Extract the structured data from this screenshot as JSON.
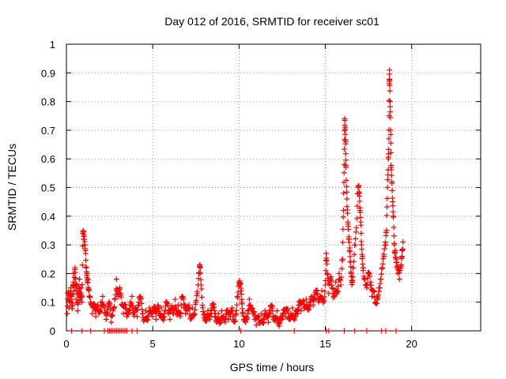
{
  "chart_data": {
    "type": "scatter",
    "title": "Day 012 of 2016, SRMTID for receiver sc01",
    "xlabel": "GPS time / hours",
    "ylabel": "SRMTID / TECUs",
    "xlim": [
      0,
      24
    ],
    "ylim": [
      0,
      1
    ],
    "xticks": [
      0,
      5,
      10,
      15,
      20
    ],
    "yticks": [
      0,
      0.1,
      0.2,
      0.3,
      0.4,
      0.5,
      0.6,
      0.7,
      0.8,
      0.9,
      1
    ],
    "ytick_labels": [
      "0",
      "0.1",
      "0.2",
      "0.3",
      "0.4",
      "0.5",
      "0.6",
      "0.7",
      "0.8",
      "0.9",
      "1"
    ],
    "xtick_labels": [
      "0",
      "5",
      "10",
      "15",
      "20"
    ],
    "grid": true,
    "marker": "+",
    "series": [
      {
        "name": "SRMTID",
        "color": "#ff0000",
        "points": [
          [
            0.05,
            0.06
          ],
          [
            0.1,
            0.13
          ],
          [
            0.15,
            0.08
          ],
          [
            0.2,
            0.1
          ],
          [
            0.25,
            0.15
          ],
          [
            0.3,
            0.12
          ],
          [
            0.35,
            0.09
          ],
          [
            0.4,
            0.2
          ],
          [
            0.45,
            0.14
          ],
          [
            0.5,
            0.22
          ],
          [
            0.55,
            0.11
          ],
          [
            0.6,
            0.16
          ],
          [
            0.65,
            0.07
          ],
          [
            0.7,
            0.13
          ],
          [
            0.75,
            0.18
          ],
          [
            0.8,
            0.12
          ],
          [
            0.85,
            0.15
          ],
          [
            0.9,
            0.1
          ],
          [
            0.95,
            0.34
          ],
          [
            1.0,
            0.32
          ],
          [
            1.05,
            0.3
          ],
          [
            1.1,
            0.28
          ],
          [
            1.15,
            0.22
          ],
          [
            1.2,
            0.2
          ],
          [
            1.25,
            0.18
          ],
          [
            1.3,
            0.14
          ],
          [
            1.4,
            0.1
          ],
          [
            1.5,
            0.06
          ],
          [
            1.6,
            0.08
          ],
          [
            1.7,
            0.05
          ],
          [
            1.8,
            0.09
          ],
          [
            1.9,
            0.07
          ],
          [
            2.0,
            0.1
          ],
          [
            2.1,
            0.12
          ],
          [
            2.2,
            0.08
          ],
          [
            2.3,
            0.04
          ],
          [
            2.4,
            0.06
          ],
          [
            2.5,
            0.09
          ],
          [
            2.6,
            0.03
          ],
          [
            2.7,
            0.07
          ],
          [
            2.8,
            0.11
          ],
          [
            2.9,
            0.18
          ],
          [
            3.0,
            0.13
          ],
          [
            3.1,
            0.15
          ],
          [
            3.2,
            0.09
          ],
          [
            3.3,
            0.06
          ],
          [
            3.4,
            0.08
          ],
          [
            3.5,
            0.05
          ],
          [
            3.6,
            0.07
          ],
          [
            3.7,
            0.1
          ],
          [
            3.8,
            0.12
          ],
          [
            3.9,
            0.06
          ],
          [
            4.0,
            0.08
          ],
          [
            4.1,
            0.05
          ],
          [
            4.2,
            0.09
          ],
          [
            4.3,
            0.11
          ],
          [
            4.4,
            0.06
          ],
          [
            4.5,
            0.04
          ],
          [
            4.6,
            0.07
          ],
          [
            4.7,
            0.05
          ],
          [
            4.8,
            0.08
          ],
          [
            4.9,
            0.06
          ],
          [
            5.0,
            0.05
          ],
          [
            5.1,
            0.07
          ],
          [
            5.2,
            0.04
          ],
          [
            5.3,
            0.09
          ],
          [
            5.4,
            0.06
          ],
          [
            5.5,
            0.08
          ],
          [
            5.6,
            0.05
          ],
          [
            5.7,
            0.07
          ],
          [
            5.8,
            0.1
          ],
          [
            5.9,
            0.06
          ],
          [
            6.0,
            0.04
          ],
          [
            6.1,
            0.08
          ],
          [
            6.2,
            0.06
          ],
          [
            6.3,
            0.11
          ],
          [
            6.4,
            0.07
          ],
          [
            6.5,
            0.09
          ],
          [
            6.6,
            0.05
          ],
          [
            6.7,
            0.12
          ],
          [
            6.8,
            0.08
          ],
          [
            6.9,
            0.06
          ],
          [
            7.0,
            0.07
          ],
          [
            7.1,
            0.09
          ],
          [
            7.2,
            0.05
          ],
          [
            7.3,
            0.08
          ],
          [
            7.4,
            0.06
          ],
          [
            7.5,
            0.1
          ],
          [
            7.6,
            0.13
          ],
          [
            7.7,
            0.2
          ],
          [
            7.75,
            0.22
          ],
          [
            7.8,
            0.16
          ],
          [
            7.9,
            0.08
          ],
          [
            8.0,
            0.06
          ],
          [
            8.1,
            0.05
          ],
          [
            8.2,
            0.07
          ],
          [
            8.3,
            0.04
          ],
          [
            8.4,
            0.06
          ],
          [
            8.5,
            0.08
          ],
          [
            8.6,
            0.05
          ],
          [
            8.7,
            0.03
          ],
          [
            8.8,
            0.06
          ],
          [
            8.9,
            0.04
          ],
          [
            9.0,
            0.07
          ],
          [
            9.1,
            0.05
          ],
          [
            9.2,
            0.03
          ],
          [
            9.3,
            0.06
          ],
          [
            9.4,
            0.04
          ],
          [
            9.5,
            0.05
          ],
          [
            9.6,
            0.08
          ],
          [
            9.7,
            0.04
          ],
          [
            9.8,
            0.06
          ],
          [
            9.9,
            0.12
          ],
          [
            10.0,
            0.17
          ],
          [
            10.05,
            0.16
          ],
          [
            10.1,
            0.14
          ],
          [
            10.15,
            0.1
          ],
          [
            10.2,
            0.06
          ],
          [
            10.3,
            0.04
          ],
          [
            10.4,
            0.05
          ],
          [
            10.5,
            0.07
          ],
          [
            10.6,
            0.11
          ],
          [
            10.7,
            0.08
          ],
          [
            10.8,
            0.06
          ],
          [
            10.9,
            0.04
          ],
          [
            11.0,
            0.02
          ],
          [
            11.1,
            0.05
          ],
          [
            11.2,
            0.03
          ],
          [
            11.3,
            0.06
          ],
          [
            11.4,
            0.04
          ],
          [
            11.5,
            0.07
          ],
          [
            11.6,
            0.05
          ],
          [
            11.7,
            0.03
          ],
          [
            11.8,
            0.06
          ],
          [
            11.9,
            0.08
          ],
          [
            12.0,
            0.04
          ],
          [
            12.1,
            0.05
          ],
          [
            12.2,
            0.07
          ],
          [
            12.3,
            0.03
          ],
          [
            12.4,
            0.05
          ],
          [
            12.5,
            0.04
          ],
          [
            12.6,
            0.06
          ],
          [
            12.7,
            0.05
          ],
          [
            12.8,
            0.07
          ],
          [
            12.9,
            0.04
          ],
          [
            13.0,
            0.06
          ],
          [
            13.1,
            0.08
          ],
          [
            13.2,
            0.05
          ],
          [
            13.3,
            0.07
          ],
          [
            13.4,
            0.06
          ],
          [
            13.5,
            0.09
          ],
          [
            13.6,
            0.07
          ],
          [
            13.7,
            0.1
          ],
          [
            13.8,
            0.08
          ],
          [
            13.9,
            0.11
          ],
          [
            14.0,
            0.09
          ],
          [
            14.1,
            0.1
          ],
          [
            14.2,
            0.12
          ],
          [
            14.3,
            0.09
          ],
          [
            14.4,
            0.11
          ],
          [
            14.5,
            0.13
          ],
          [
            14.6,
            0.1
          ],
          [
            14.7,
            0.12
          ],
          [
            14.8,
            0.14
          ],
          [
            14.9,
            0.11
          ],
          [
            15.0,
            0.16
          ],
          [
            15.05,
            0.27
          ],
          [
            15.1,
            0.2
          ],
          [
            15.2,
            0.13
          ],
          [
            15.3,
            0.18
          ],
          [
            15.4,
            0.15
          ],
          [
            15.5,
            0.12
          ],
          [
            15.6,
            0.17
          ],
          [
            15.7,
            0.14
          ],
          [
            15.8,
            0.2
          ],
          [
            15.9,
            0.16
          ],
          [
            16.0,
            0.25
          ],
          [
            16.05,
            0.42
          ],
          [
            16.1,
            0.58
          ],
          [
            16.12,
            0.74
          ],
          [
            16.15,
            0.71
          ],
          [
            16.18,
            0.66
          ],
          [
            16.2,
            0.57
          ],
          [
            16.25,
            0.46
          ],
          [
            16.3,
            0.38
          ],
          [
            16.35,
            0.32
          ],
          [
            16.4,
            0.28
          ],
          [
            16.45,
            0.24
          ],
          [
            16.5,
            0.2
          ],
          [
            16.55,
            0.17
          ],
          [
            16.6,
            0.22
          ],
          [
            16.7,
            0.3
          ],
          [
            16.8,
            0.36
          ],
          [
            16.9,
            0.5
          ],
          [
            16.95,
            0.48
          ],
          [
            17.0,
            0.42
          ],
          [
            17.05,
            0.38
          ],
          [
            17.1,
            0.3
          ],
          [
            17.15,
            0.26
          ],
          [
            17.2,
            0.22
          ],
          [
            17.3,
            0.18
          ],
          [
            17.4,
            0.15
          ],
          [
            17.5,
            0.2
          ],
          [
            17.6,
            0.16
          ],
          [
            17.7,
            0.12
          ],
          [
            17.8,
            0.14
          ],
          [
            17.9,
            0.1
          ],
          [
            18.0,
            0.12
          ],
          [
            18.1,
            0.15
          ],
          [
            18.2,
            0.18
          ],
          [
            18.3,
            0.22
          ],
          [
            18.4,
            0.26
          ],
          [
            18.5,
            0.3
          ],
          [
            18.55,
            0.35
          ],
          [
            18.6,
            0.5
          ],
          [
            18.65,
            0.6
          ],
          [
            18.68,
            0.67
          ],
          [
            18.7,
            0.87
          ],
          [
            18.72,
            0.91
          ],
          [
            18.75,
            0.8
          ],
          [
            18.78,
            0.7
          ],
          [
            18.8,
            0.57
          ],
          [
            18.85,
            0.52
          ],
          [
            18.9,
            0.45
          ],
          [
            18.95,
            0.4
          ],
          [
            19.0,
            0.3
          ],
          [
            19.05,
            0.28
          ],
          [
            19.1,
            0.25
          ],
          [
            19.15,
            0.22
          ],
          [
            19.2,
            0.2
          ],
          [
            19.3,
            0.18
          ],
          [
            19.4,
            0.23
          ],
          [
            19.45,
            0.28
          ],
          [
            19.5,
            0.31
          ]
        ]
      }
    ],
    "zero_points_x": [
      0.3,
      0.9,
      1.4,
      2.2,
      2.4,
      2.5,
      2.6,
      2.7,
      2.8,
      2.9,
      3.0,
      3.1,
      3.2,
      3.3,
      3.4,
      3.5,
      3.8,
      4.1,
      10.1,
      13.2,
      15.05,
      15.2,
      16.1,
      16.7,
      17.4,
      18.25,
      18.5,
      19.1
    ]
  }
}
